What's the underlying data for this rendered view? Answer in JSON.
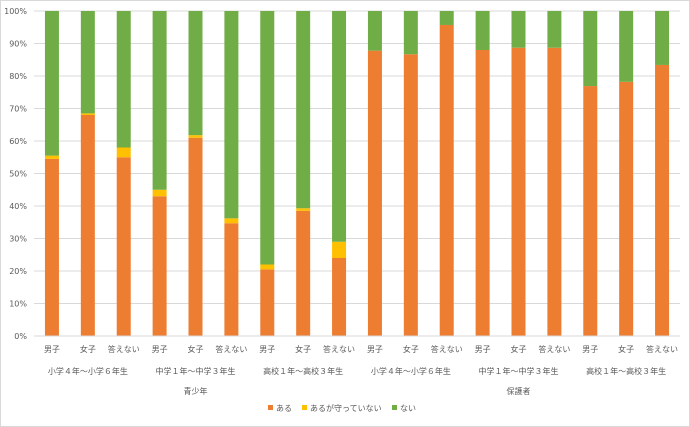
{
  "chart_data": {
    "type": "bar",
    "stacked": true,
    "percent": true,
    "title": "",
    "ylim": [
      0,
      100
    ],
    "yticks": [
      "0%",
      "10%",
      "20%",
      "30%",
      "40%",
      "50%",
      "60%",
      "70%",
      "80%",
      "90%",
      "100%"
    ],
    "grid": true,
    "legend_position": "bottom",
    "groups": [
      {
        "label": "青少年",
        "subgroups": [
          {
            "label": "小学４年～小学６年生",
            "categories": [
              "男子",
              "女子",
              "答えない"
            ]
          },
          {
            "label": "中学１年～中学３年生",
            "categories": [
              "男子",
              "女子",
              "答えない"
            ]
          },
          {
            "label": "高校１年～高校３年生",
            "categories": [
              "男子",
              "女子",
              "答えない"
            ]
          }
        ]
      },
      {
        "label": "保護者",
        "subgroups": [
          {
            "label": "小学４年～小学６年生",
            "categories": [
              "男子",
              "女子",
              "答えない"
            ]
          },
          {
            "label": "中学１年～中学３年生",
            "categories": [
              "男子",
              "女子",
              "答えない"
            ]
          },
          {
            "label": "高校１年～高校３年生",
            "categories": [
              "男子",
              "女子",
              "答えない"
            ]
          }
        ]
      }
    ],
    "series": [
      {
        "name": "ある",
        "color": "#ED7D31",
        "values": [
          54.5,
          68,
          55,
          43,
          61,
          34.7,
          20.5,
          38.5,
          24,
          87.8,
          86.7,
          95.7,
          88,
          88.7,
          88.7,
          76.9,
          78.2,
          83.4
        ]
      },
      {
        "name": "あるが守っていない",
        "color": "#FFC000",
        "values": [
          1,
          0.5,
          3,
          2,
          0.8,
          1.5,
          1.5,
          0.8,
          5,
          0,
          0,
          0,
          0,
          0,
          0,
          0,
          0,
          0
        ]
      },
      {
        "name": "ない",
        "color": "#70AD47",
        "values": [
          44.5,
          31.5,
          42,
          55,
          38.2,
          63.8,
          78,
          60.7,
          71,
          12.2,
          13.3,
          4.3,
          12,
          11.3,
          11.3,
          23.1,
          21.8,
          16.6
        ]
      }
    ]
  }
}
